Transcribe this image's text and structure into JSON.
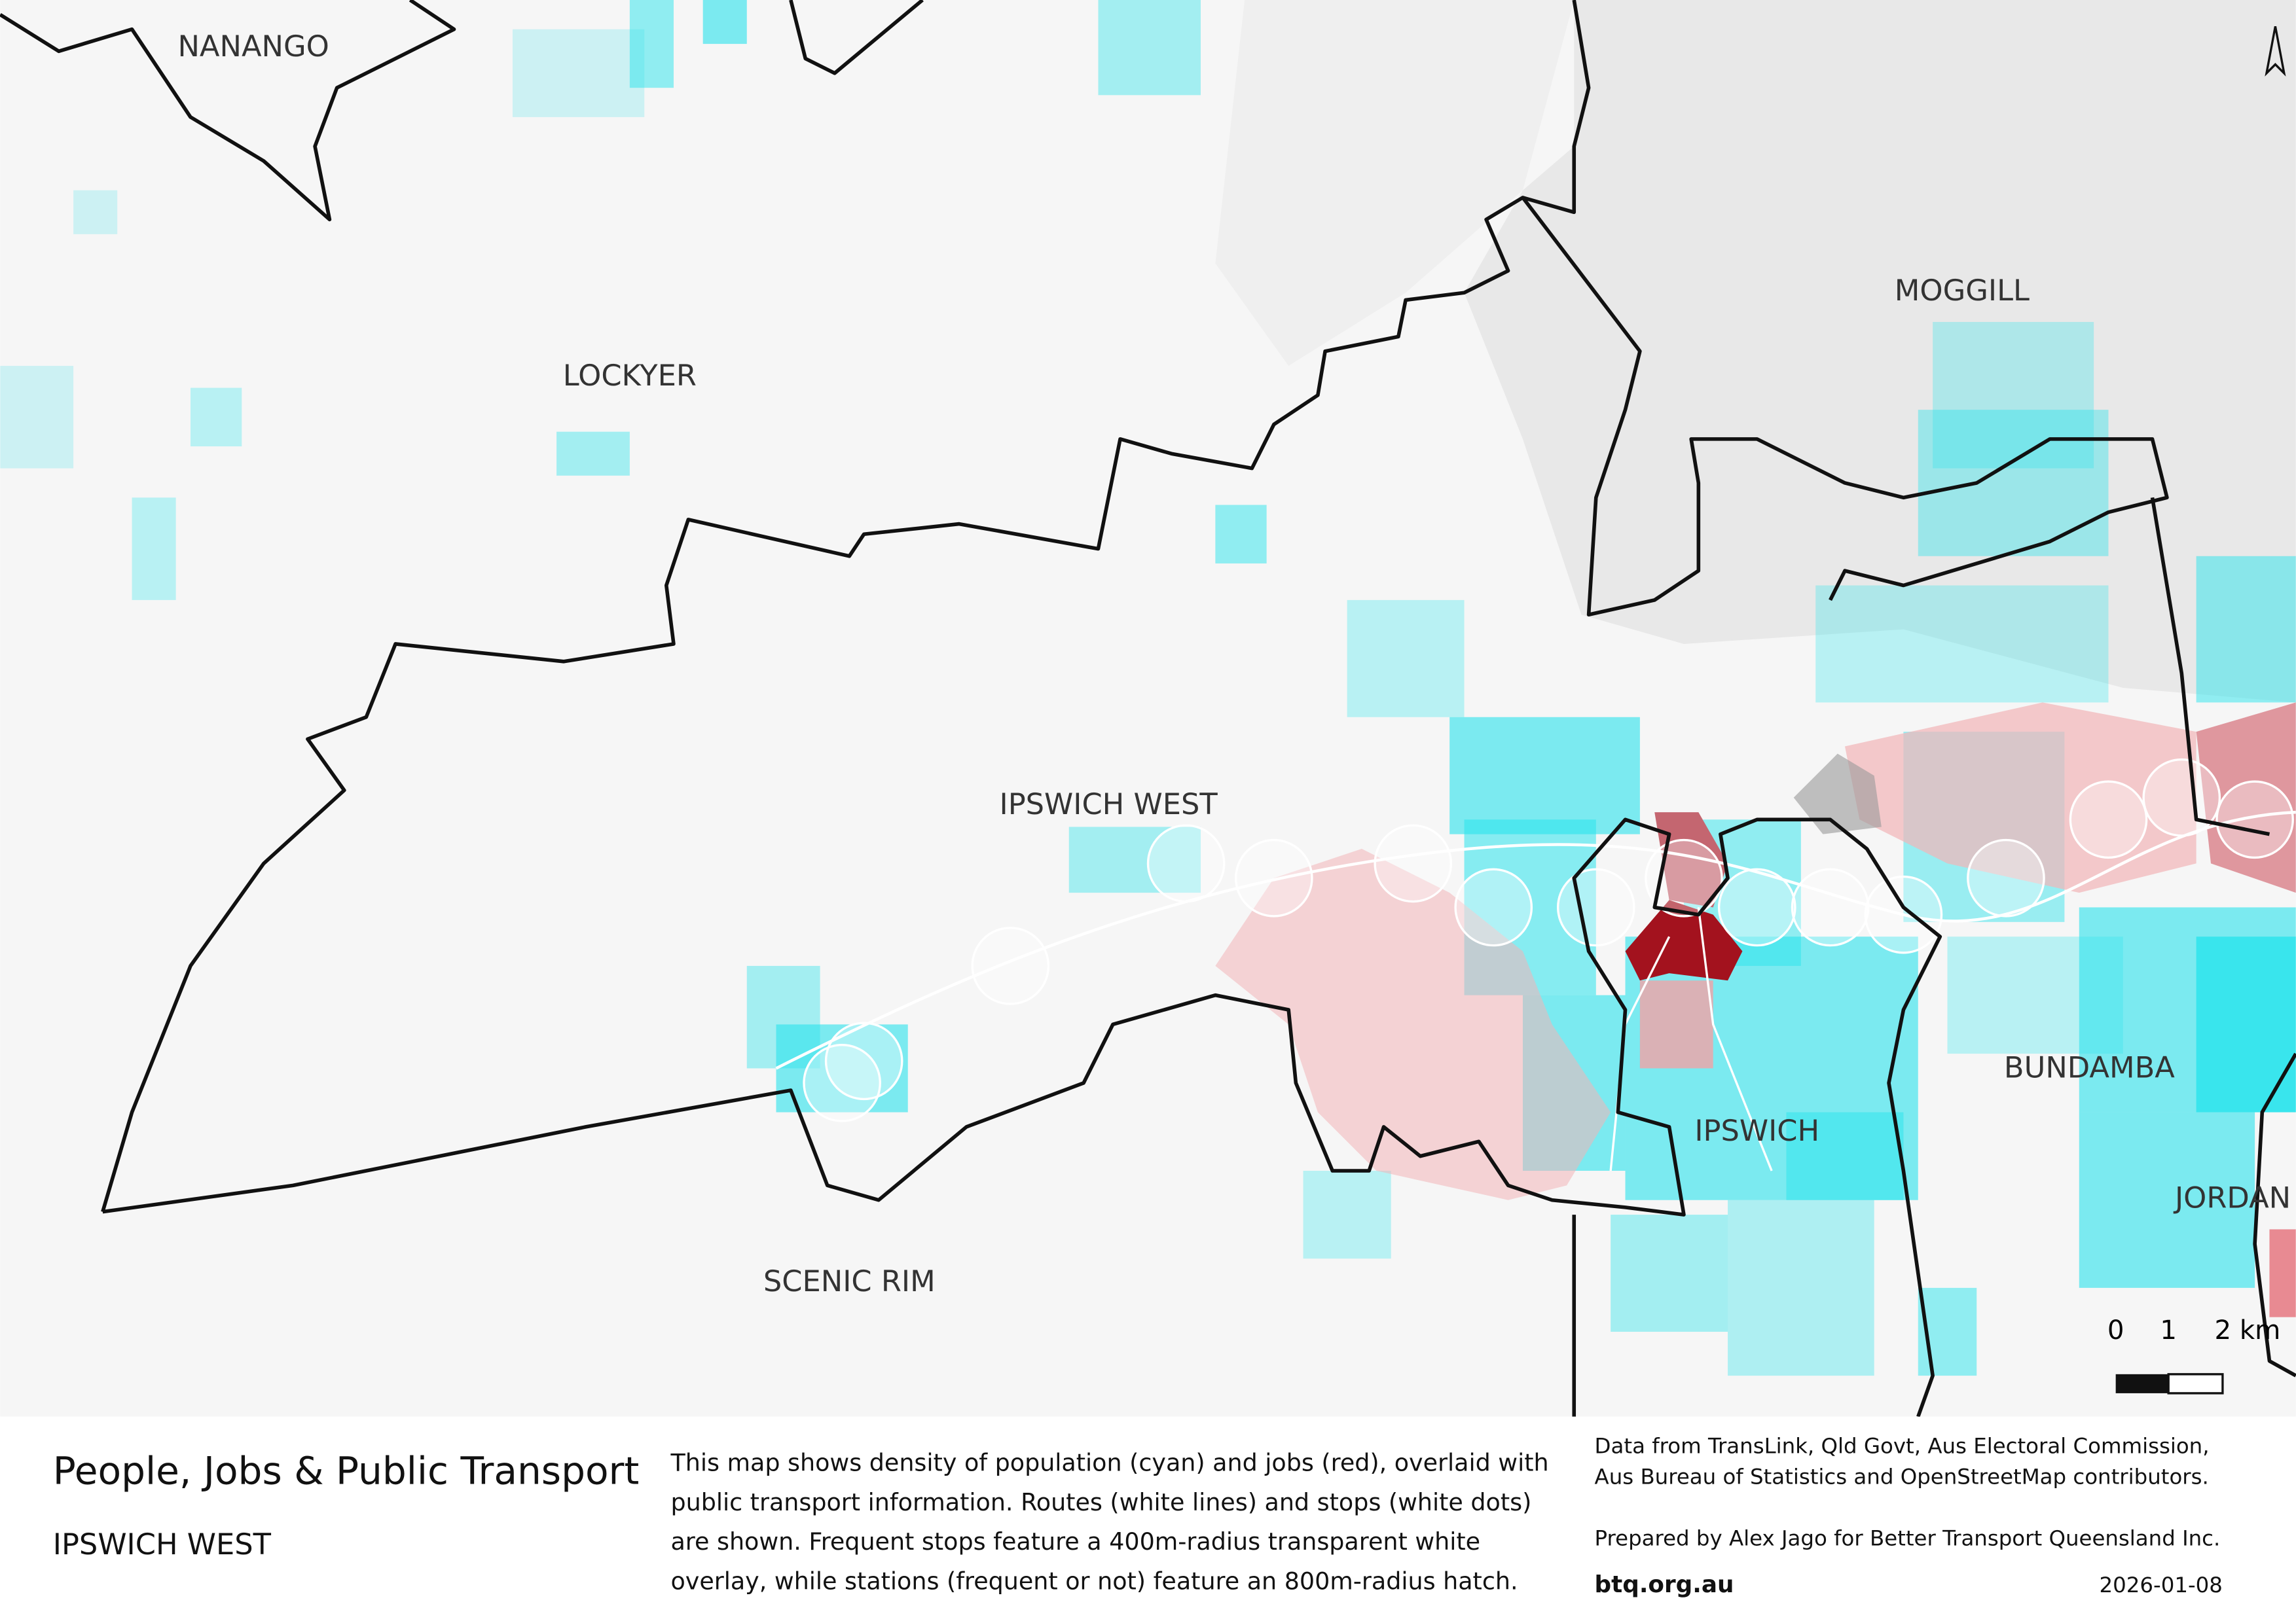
{
  "map": {
    "regions": [
      "NANANGO",
      "LOCKYER",
      "MOGGILL",
      "IPSWICH WEST",
      "BUNDAMBA",
      "IPSWICH",
      "JORDAN",
      "SCENIC RIM"
    ],
    "scale_bar": [
      "0",
      "1",
      "2 km"
    ]
  },
  "footer": {
    "title": "People, Jobs & Public Transport",
    "subtitle": "IPSWICH WEST",
    "description": [
      "This map shows density of population (cyan) and jobs (red), overlaid with",
      "public transport information. Routes (white lines) and stops (white dots)",
      "are shown. Frequent stops feature a 400m-radius transparent white",
      "overlay, while stations (frequent or not) feature an 800m-radius hatch."
    ],
    "credits": [
      "Data from TransLink,  Qld Govt,  Aus Electoral Commission,",
      "Aus Bureau of Statistics and OpenStreetMap contributors."
    ],
    "prepared_by": "Prepared by Alex Jago for Better Transport Queensland Inc.",
    "website": "btq.org.au",
    "date": "2026-01-08"
  }
}
